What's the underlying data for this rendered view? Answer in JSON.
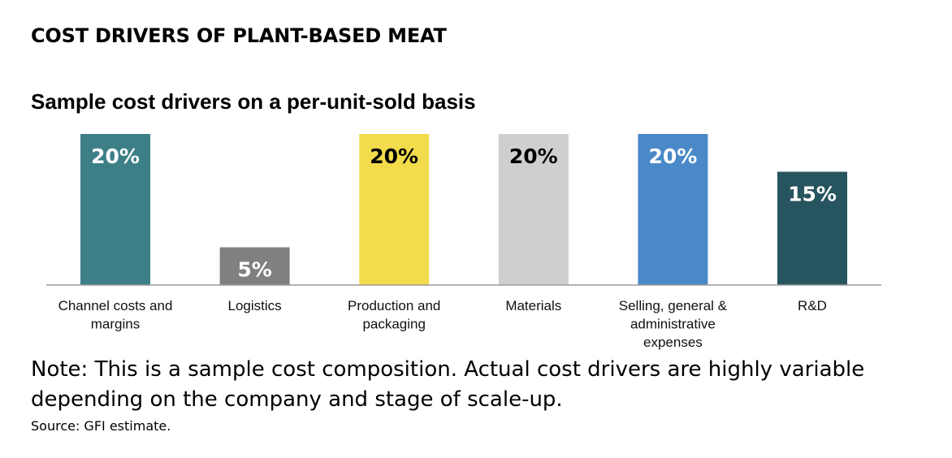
{
  "page": {
    "title": "COST DRIVERS OF PLANT-BASED MEAT",
    "note": "Note: This is a sample cost composition. Actual cost drivers are highly variable depending on the company and stage of scale-up.",
    "source": "Source: GFI estimate."
  },
  "chart_data": {
    "type": "bar",
    "title": "Sample cost drivers on a per-unit-sold basis",
    "xlabel": "",
    "ylabel": "",
    "ylim": [
      0,
      20
    ],
    "grid": false,
    "categories": [
      [
        "Channel costs and",
        "margins"
      ],
      [
        "Logistics"
      ],
      [
        "Production and",
        "packaging"
      ],
      [
        "Materials"
      ],
      [
        "Selling, general &",
        "administrative",
        "expenses"
      ],
      [
        "R&D"
      ]
    ],
    "values": [
      20,
      5,
      20,
      20,
      20,
      15
    ],
    "data_labels": [
      "20%",
      "5%",
      "20%",
      "20%",
      "20%",
      "15%"
    ],
    "colors": [
      "#3d7f87",
      "#808080",
      "#f2dc4b",
      "#cfcfcf",
      "#4a89c8",
      "#27555f"
    ],
    "label_colors": [
      "#ffffff",
      "#ffffff",
      "#000000",
      "#000000",
      "#ffffff",
      "#ffffff"
    ]
  }
}
